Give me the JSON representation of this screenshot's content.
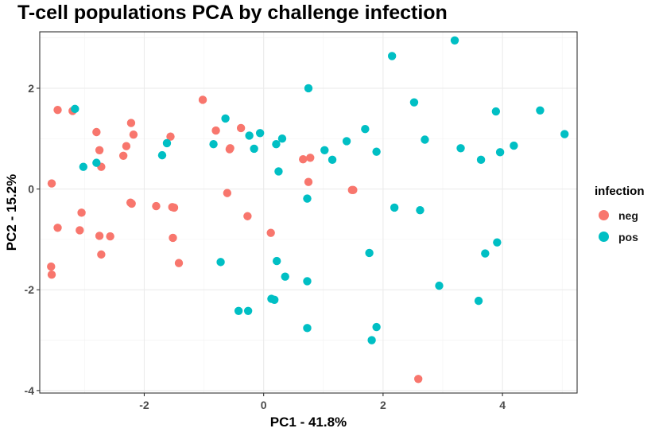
{
  "chart_data": {
    "type": "scatter",
    "title": "T-cell populations PCA by challenge infection",
    "xlabel": "PC1 - 41.8%",
    "ylabel": "PC2 - 15.2%",
    "xlim": [
      -3.75,
      5.25
    ],
    "ylim": [
      -4.05,
      3.12
    ],
    "xticks": [
      -2,
      0,
      2,
      4
    ],
    "yticks": [
      -4,
      -2,
      0,
      2
    ],
    "xminor": [
      -3,
      -1,
      1,
      3,
      5
    ],
    "yminor": [
      -3,
      -1,
      1,
      3
    ],
    "grid": true,
    "legend": {
      "title": "infection",
      "position": "right"
    },
    "series": [
      {
        "name": "neg",
        "color": "#F8766D",
        "points": [
          [
            -3.45,
            1.57
          ],
          [
            -3.2,
            1.55
          ],
          [
            -2.8,
            1.13
          ],
          [
            -2.75,
            0.77
          ],
          [
            -2.72,
            0.44
          ],
          [
            -3.55,
            0.11
          ],
          [
            -3.05,
            -0.47
          ],
          [
            -3.45,
            -0.77
          ],
          [
            -3.08,
            -0.82
          ],
          [
            -2.75,
            -0.93
          ],
          [
            -2.57,
            -0.94
          ],
          [
            -2.72,
            -1.3
          ],
          [
            -3.56,
            -1.54
          ],
          [
            -3.55,
            -1.7
          ],
          [
            -2.22,
            1.31
          ],
          [
            -2.18,
            1.08
          ],
          [
            -2.3,
            0.85
          ],
          [
            -2.35,
            0.66
          ],
          [
            -2.23,
            -0.27
          ],
          [
            -2.21,
            -0.29
          ],
          [
            -1.8,
            -0.34
          ],
          [
            -1.53,
            -0.36
          ],
          [
            -1.5,
            -0.37
          ],
          [
            -1.52,
            -0.97
          ],
          [
            -1.42,
            -1.47
          ],
          [
            -1.56,
            1.04
          ],
          [
            -1.02,
            1.77
          ],
          [
            -0.8,
            1.16
          ],
          [
            -0.38,
            1.21
          ],
          [
            -0.56,
            0.81
          ],
          [
            -0.57,
            0.79
          ],
          [
            -0.61,
            -0.08
          ],
          [
            -0.27,
            -0.54
          ],
          [
            0.12,
            -0.87
          ],
          [
            0.66,
            0.59
          ],
          [
            0.78,
            0.62
          ],
          [
            0.75,
            0.14
          ],
          [
            1.48,
            -0.02
          ],
          [
            1.5,
            -0.02
          ],
          [
            2.59,
            -3.77
          ]
        ]
      },
      {
        "name": "pos",
        "color": "#00BFC4",
        "points": [
          [
            -3.16,
            1.59
          ],
          [
            -3.02,
            0.44
          ],
          [
            -2.8,
            0.52
          ],
          [
            -1.62,
            0.91
          ],
          [
            -1.7,
            0.67
          ],
          [
            -0.64,
            1.4
          ],
          [
            -0.84,
            0.89
          ],
          [
            -0.24,
            1.06
          ],
          [
            -0.16,
            0.8
          ],
          [
            -0.06,
            1.11
          ],
          [
            0.21,
            0.89
          ],
          [
            0.31,
            1.0
          ],
          [
            0.25,
            0.35
          ],
          [
            0.75,
            2.0
          ],
          [
            0.73,
            -0.19
          ],
          [
            -0.72,
            -1.45
          ],
          [
            0.22,
            -1.43
          ],
          [
            0.36,
            -1.74
          ],
          [
            0.13,
            -2.18
          ],
          [
            0.18,
            -2.2
          ],
          [
            -0.42,
            -2.42
          ],
          [
            -0.26,
            -2.42
          ],
          [
            0.73,
            -1.83
          ],
          [
            0.73,
            -2.76
          ],
          [
            1.02,
            0.77
          ],
          [
            1.15,
            0.58
          ],
          [
            1.39,
            0.95
          ],
          [
            1.7,
            1.19
          ],
          [
            1.89,
            0.74
          ],
          [
            1.77,
            -1.27
          ],
          [
            1.89,
            -2.74
          ],
          [
            1.81,
            -3.0
          ],
          [
            2.15,
            2.64
          ],
          [
            2.52,
            1.72
          ],
          [
            2.7,
            0.98
          ],
          [
            2.19,
            -0.37
          ],
          [
            2.62,
            -0.42
          ],
          [
            2.94,
            -1.92
          ],
          [
            3.2,
            2.95
          ],
          [
            3.3,
            0.81
          ],
          [
            3.64,
            0.58
          ],
          [
            3.89,
            1.54
          ],
          [
            3.96,
            0.73
          ],
          [
            3.71,
            -1.28
          ],
          [
            3.91,
            -1.06
          ],
          [
            3.6,
            -2.22
          ],
          [
            4.19,
            0.86
          ],
          [
            4.63,
            1.56
          ],
          [
            5.04,
            1.09
          ]
        ]
      }
    ]
  }
}
